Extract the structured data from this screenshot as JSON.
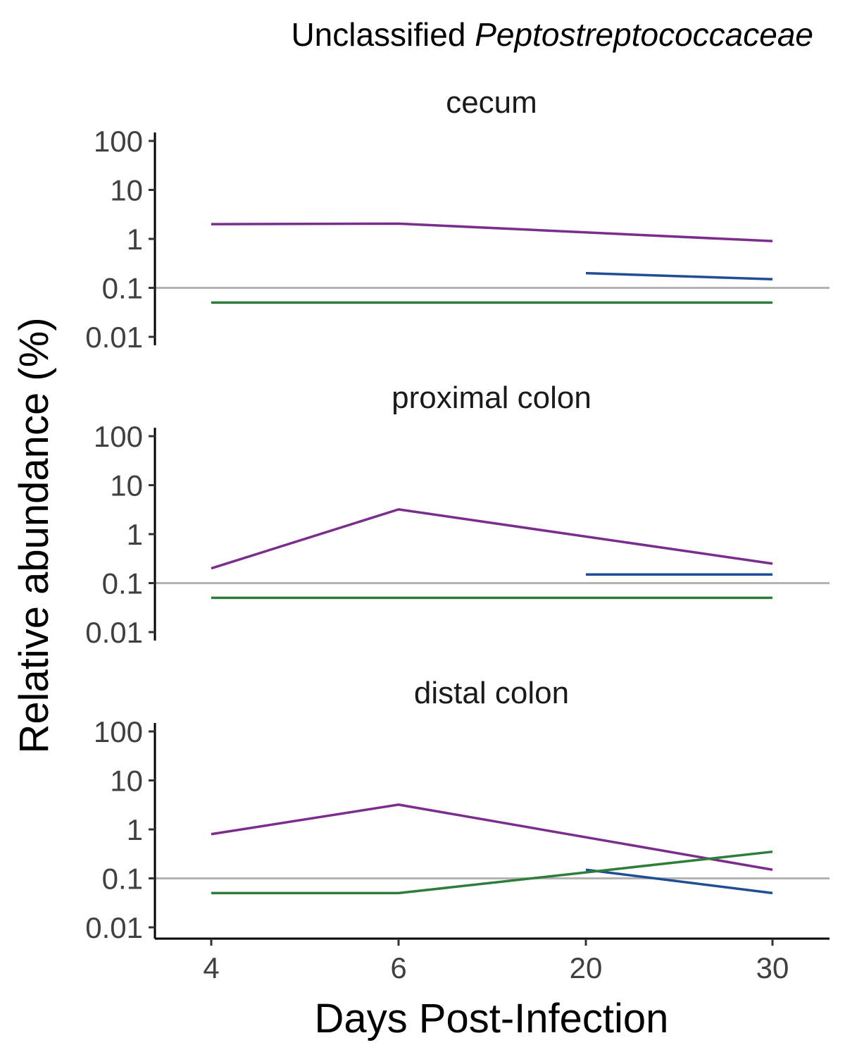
{
  "chart_data": {
    "type": "line",
    "title": {
      "prefix": "Unclassified ",
      "italic": "Peptostreptococcaceae"
    },
    "xlabel": "Days Post-Infection",
    "ylabel": "Relative abundance (%)",
    "y_scale": "log10",
    "ylim": [
      0.01,
      100
    ],
    "yticks": [
      0.01,
      0.1,
      1,
      10,
      100
    ],
    "ytick_labels": [
      "0.01",
      "0.1",
      "1",
      "10",
      "100"
    ],
    "categories": [
      "4",
      "6",
      "20",
      "30"
    ],
    "reference_line": {
      "y": 0.1,
      "color": "#b3b3b3"
    },
    "series_colors": [
      "#7b2d8e",
      "#1f4e96",
      "#2e7d3a"
    ],
    "panels": [
      {
        "strip": "cecum",
        "series": [
          {
            "color": "#7b2d8e",
            "points": [
              {
                "x": "4",
                "y": 2.0
              },
              {
                "x": "6",
                "y": 2.05
              },
              {
                "x": "30",
                "y": 0.9
              }
            ]
          },
          {
            "color": "#1f4e96",
            "points": [
              {
                "x": "20",
                "y": 0.2
              },
              {
                "x": "30",
                "y": 0.15
              }
            ]
          },
          {
            "color": "#2e7d3a",
            "points": [
              {
                "x": "4",
                "y": 0.05
              },
              {
                "x": "30",
                "y": 0.05
              }
            ]
          }
        ]
      },
      {
        "strip": "proximal colon",
        "series": [
          {
            "color": "#7b2d8e",
            "points": [
              {
                "x": "4",
                "y": 0.2
              },
              {
                "x": "6",
                "y": 3.2
              },
              {
                "x": "30",
                "y": 0.25
              }
            ]
          },
          {
            "color": "#1f4e96",
            "points": [
              {
                "x": "20",
                "y": 0.15
              },
              {
                "x": "30",
                "y": 0.15
              }
            ]
          },
          {
            "color": "#2e7d3a",
            "points": [
              {
                "x": "4",
                "y": 0.05
              },
              {
                "x": "30",
                "y": 0.05
              }
            ]
          }
        ]
      },
      {
        "strip": "distal colon",
        "series": [
          {
            "color": "#7b2d8e",
            "points": [
              {
                "x": "4",
                "y": 0.8
              },
              {
                "x": "6",
                "y": 3.2
              },
              {
                "x": "30",
                "y": 0.15
              }
            ]
          },
          {
            "color": "#1f4e96",
            "points": [
              {
                "x": "20",
                "y": 0.15
              },
              {
                "x": "30",
                "y": 0.05
              }
            ]
          },
          {
            "color": "#2e7d3a",
            "points": [
              {
                "x": "4",
                "y": 0.05
              },
              {
                "x": "6",
                "y": 0.05
              },
              {
                "x": "30",
                "y": 0.35
              }
            ]
          }
        ]
      }
    ]
  }
}
